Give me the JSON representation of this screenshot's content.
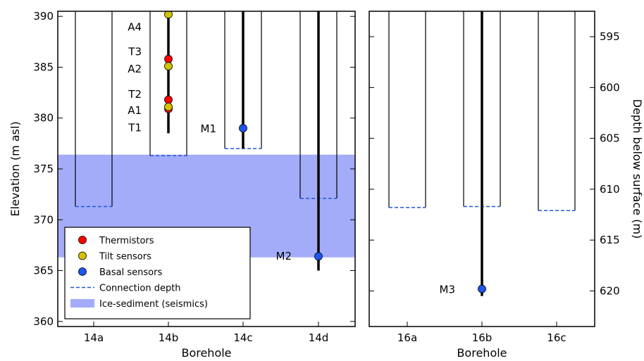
{
  "chart_data": {
    "type": "scatter",
    "panels": [
      {
        "xlabel": "Borehole",
        "ylabel": "Elevation (m asl)",
        "ylim": [
          359.5,
          390.5
        ],
        "yticks": [
          360,
          365,
          370,
          375,
          380,
          385,
          390
        ],
        "categories": [
          "14a",
          "14b",
          "14c",
          "14d"
        ],
        "ice_sediment_band": [
          366.3,
          376.4
        ],
        "boreholes": [
          {
            "name": "14a",
            "connection_depth": 371.3,
            "string_bottom": null
          },
          {
            "name": "14b",
            "connection_depth": 376.3,
            "string_bottom": 378.5
          },
          {
            "name": "14c",
            "connection_depth": 377.0,
            "string_bottom": 377.0
          },
          {
            "name": "14d",
            "connection_depth": 372.1,
            "string_bottom": 365.0
          }
        ],
        "sensors": [
          {
            "borehole": "14b",
            "type": "tilt",
            "elevation": 390.2,
            "label": "A4",
            "label_elevation": 389.0
          },
          {
            "borehole": "14b",
            "type": "thermistor",
            "elevation": 385.8,
            "label": "T3",
            "label_elevation": 386.6
          },
          {
            "borehole": "14b",
            "type": "tilt",
            "elevation": 385.1,
            "label": "A2",
            "label_elevation": 384.9
          },
          {
            "borehole": "14b",
            "type": "thermistor",
            "elevation": 381.8,
            "label": "T2",
            "label_elevation": 382.4
          },
          {
            "borehole": "14b",
            "type": "thermistor",
            "elevation": 380.9,
            "label": "",
            "label_elevation": null
          },
          {
            "borehole": "14b",
            "type": "tilt",
            "elevation": 381.1,
            "label": "A1",
            "label_elevation": 380.8
          },
          {
            "borehole": "14b",
            "type": "none",
            "elevation": null,
            "label": "T1",
            "label_elevation": 379.1
          },
          {
            "borehole": "14c",
            "type": "basal",
            "elevation": 379.0,
            "label": "M1",
            "label_elevation": 379.0
          },
          {
            "borehole": "14d",
            "type": "basal",
            "elevation": 366.4,
            "label": "M2",
            "label_elevation": 366.5
          }
        ]
      },
      {
        "xlabel": "Borehole",
        "ylabel": "Depth below surface (m)",
        "yticks_right": [
          595,
          600,
          605,
          610,
          615,
          620
        ],
        "categories": [
          "16a",
          "16b",
          "16c"
        ],
        "boreholes": [
          {
            "name": "16a",
            "connection_depth": 371.2,
            "string_bottom": null
          },
          {
            "name": "16b",
            "connection_depth": 371.3,
            "string_bottom": 362.5
          },
          {
            "name": "16c",
            "connection_depth": 370.9,
            "string_bottom": null
          }
        ],
        "sensors": [
          {
            "borehole": "16b",
            "type": "basal",
            "elevation": 363.2,
            "label": "M3",
            "label_elevation": 363.2
          }
        ]
      }
    ],
    "legend": {
      "position": "lower-left",
      "entries": [
        {
          "name": "Thermistors",
          "kind": "marker",
          "color": "#ff0000"
        },
        {
          "name": "Tilt sensors",
          "kind": "marker",
          "color": "#d4c200"
        },
        {
          "name": "Basal sensors",
          "kind": "marker",
          "color": "#1d55f0"
        },
        {
          "name": "Connection depth",
          "kind": "dashed",
          "color": "#2255dd"
        },
        {
          "name": "Ice-sediment (seismics)",
          "kind": "patch",
          "color": "#a3acf8"
        }
      ]
    },
    "colors": {
      "thermistor": "#ff0000",
      "tilt": "#d4c200",
      "basal": "#1d55f0",
      "connection": "#2255dd",
      "band": "#a3acf8"
    }
  }
}
